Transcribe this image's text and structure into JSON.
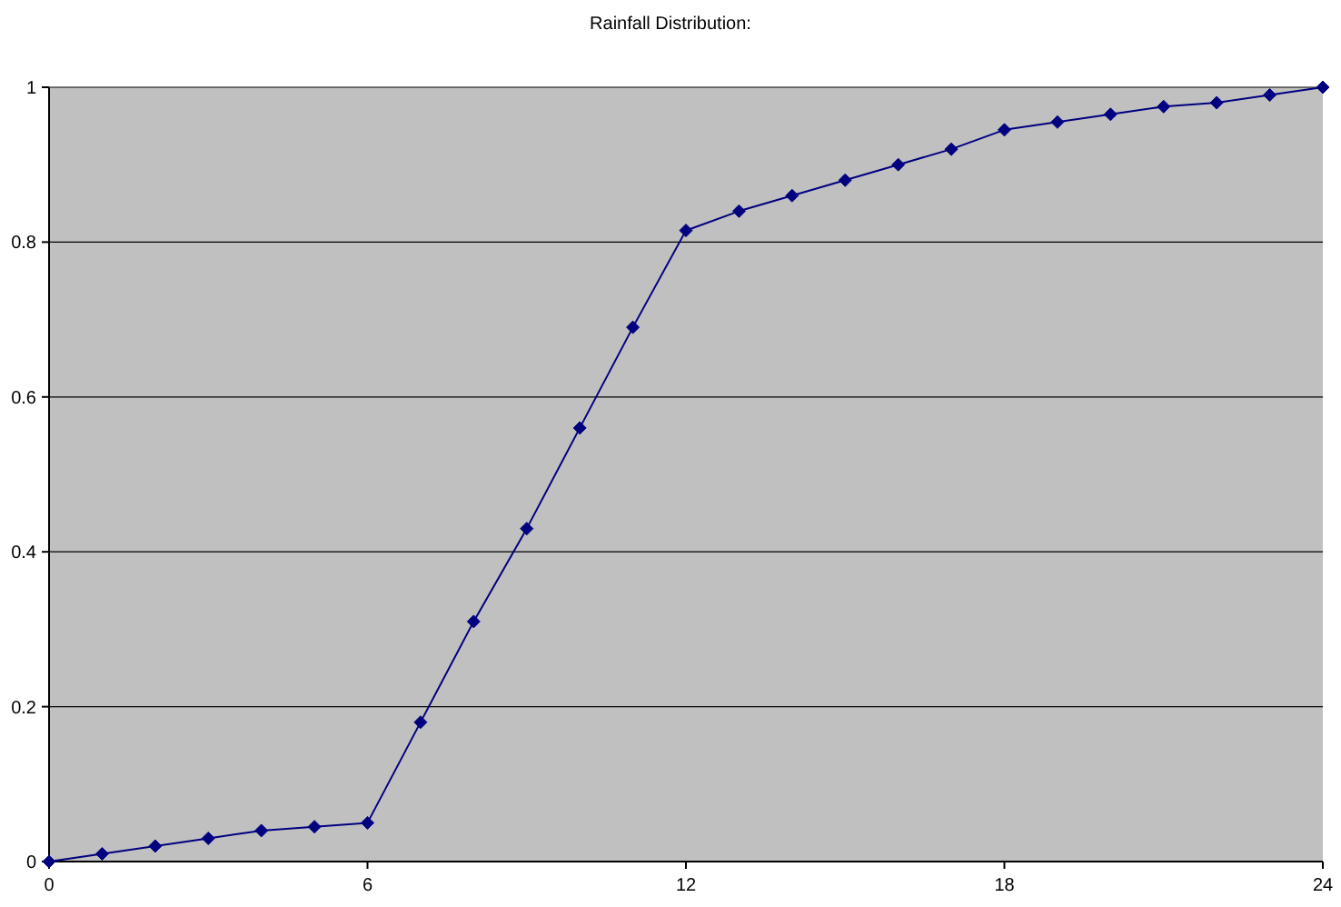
{
  "chart_data": {
    "type": "line",
    "title": "Rainfall Distribution:",
    "x": [
      0,
      1,
      2,
      3,
      4,
      5,
      6,
      7,
      8,
      9,
      10,
      11,
      12,
      13,
      14,
      15,
      16,
      17,
      18,
      19,
      20,
      21,
      22,
      23,
      24
    ],
    "series": [
      {
        "color": "#000080",
        "values": [
          0,
          0.01,
          0.02,
          0.03,
          0.04,
          0.045,
          0.05,
          0.18,
          0.31,
          0.43,
          0.56,
          0.69,
          0.815,
          0.84,
          0.86,
          0.88,
          0.9,
          0.92,
          0.945,
          0.955,
          0.965,
          0.975,
          0.98,
          0.99,
          1
        ]
      }
    ],
    "xlim": [
      0,
      24
    ],
    "xticks": [
      0,
      6,
      12,
      18,
      24
    ],
    "ylim": [
      0,
      1
    ],
    "yticks": [
      0,
      0.2,
      0.4,
      0.6,
      0.8,
      1
    ],
    "grid": "y",
    "marker": "diamond",
    "line_style": "solid"
  }
}
